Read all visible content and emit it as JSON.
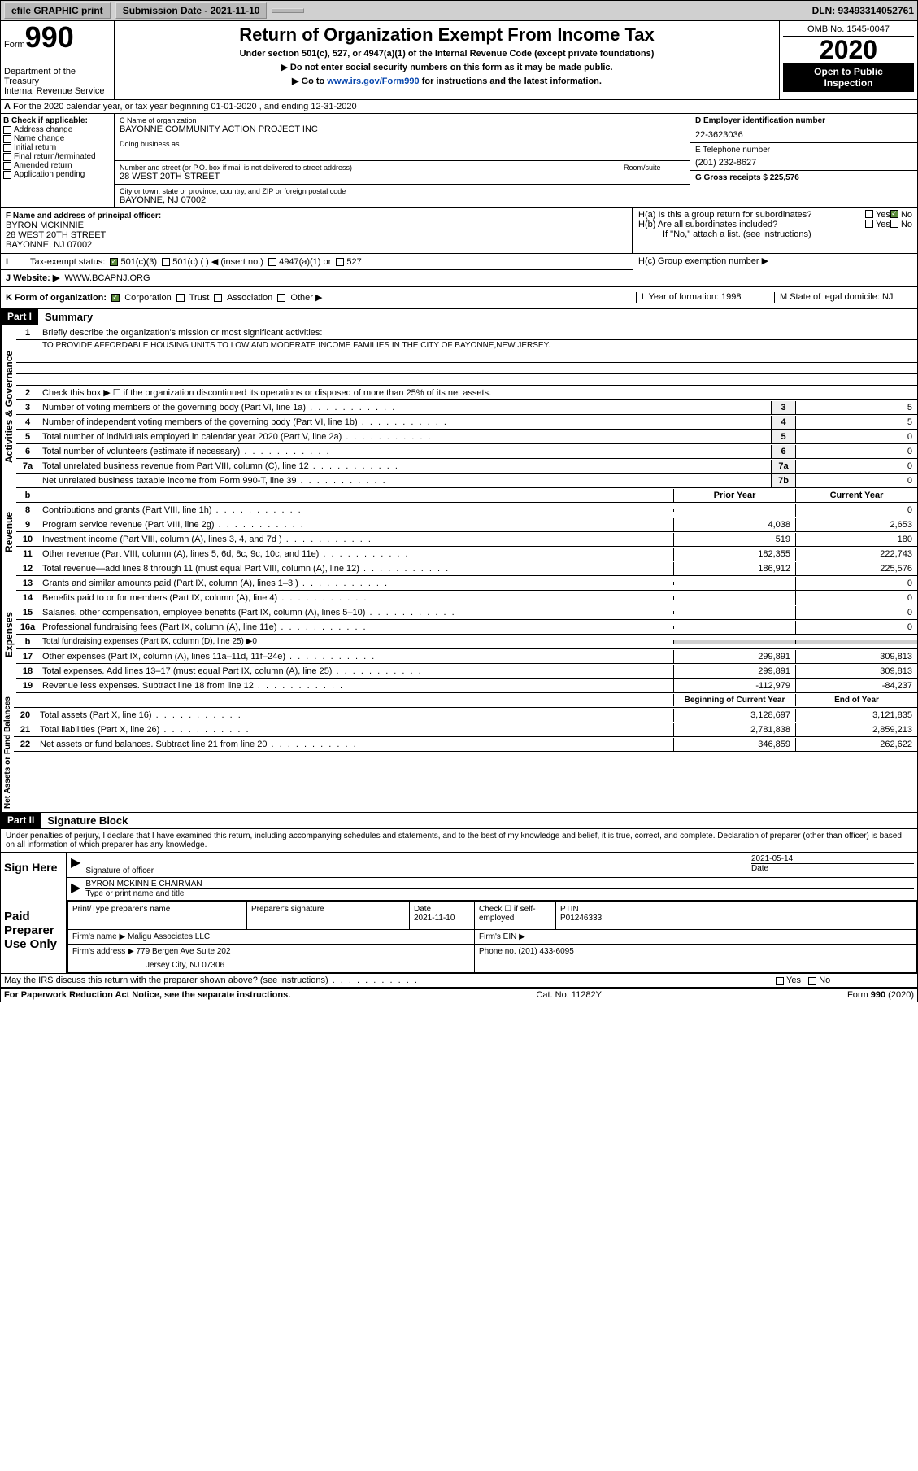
{
  "topbar": {
    "efile": "efile GRAPHIC print",
    "submission_label": "Submission Date - 2021-11-10",
    "dln": "DLN: 93493314052761"
  },
  "header": {
    "form_word": "Form",
    "form_num": "990",
    "dept": "Department of the Treasury",
    "irs": "Internal Revenue Service",
    "title": "Return of Organization Exempt From Income Tax",
    "subtitle": "Under section 501(c), 527, or 4947(a)(1) of the Internal Revenue Code (except private foundations)",
    "inst1": "▶ Do not enter social security numbers on this form as it may be made public.",
    "inst2_pre": "▶ Go to ",
    "inst2_link": "www.irs.gov/Form990",
    "inst2_post": " for instructions and the latest information.",
    "omb": "OMB No. 1545-0047",
    "year": "2020",
    "public1": "Open to Public",
    "public2": "Inspection"
  },
  "line_a": "For the 2020 calendar year, or tax year beginning 01-01-2020    , and ending 12-31-2020",
  "box_b": {
    "label": "B Check if applicable:",
    "items": [
      "Address change",
      "Name change",
      "Initial return",
      "Final return/terminated",
      "Amended return",
      "Application pending"
    ]
  },
  "box_c": {
    "name_label": "C Name of organization",
    "name": "BAYONNE COMMUNITY ACTION PROJECT INC",
    "dba_label": "Doing business as",
    "street_label": "Number and street (or P.O. box if mail is not delivered to street address)",
    "room_label": "Room/suite",
    "street": "28 WEST 20TH STREET",
    "city_label": "City or town, state or province, country, and ZIP or foreign postal code",
    "city": "BAYONNE, NJ  07002"
  },
  "box_d": {
    "label": "D Employer identification number",
    "val": "22-3623036"
  },
  "box_e": {
    "label": "E Telephone number",
    "val": "(201) 232-8627"
  },
  "box_g": {
    "label": "G Gross receipts $ 225,576"
  },
  "box_f": {
    "label": "F Name and address of principal officer:",
    "name": "BYRON MCKINNIE",
    "street": "28 WEST 20TH STREET",
    "city": "BAYONNE, NJ  07002"
  },
  "box_h": {
    "a": "H(a)  Is this a group return for subordinates?",
    "b": "H(b)  Are all subordinates included?",
    "b_note": "If \"No,\" attach a list. (see instructions)",
    "c": "H(c)  Group exemption number ▶"
  },
  "tax_status": {
    "label": "Tax-exempt status:",
    "opts": [
      "501(c)(3)",
      "501(c) (  ) ◀ (insert no.)",
      "4947(a)(1) or",
      "527"
    ]
  },
  "website": {
    "label": "J   Website: ▶",
    "val": "WWW.BCAPNJ.ORG"
  },
  "line_k": {
    "k": "K Form of organization:",
    "opts": [
      "Corporation",
      "Trust",
      "Association",
      "Other ▶"
    ],
    "l": "L Year of formation: 1998",
    "m": "M State of legal domicile: NJ"
  },
  "part1": {
    "header": "Part I",
    "title": "Summary",
    "q1": "Briefly describe the organization's mission or most significant activities:",
    "mission": "TO PROVIDE AFFORDABLE HOUSING UNITS TO LOW AND MODERATE INCOME FAMILIES IN THE CITY OF BAYONNE,NEW JERSEY.",
    "q2": "Check this box ▶ ☐  if the organization discontinued its operations or disposed of more than 25% of its net assets.",
    "vlabel_gov": "Activities & Governance",
    "vlabel_rev": "Revenue",
    "vlabel_exp": "Expenses",
    "vlabel_net": "Net Assets or Fund Balances",
    "col_prior": "Prior Year",
    "col_current": "Current Year",
    "col_beg": "Beginning of Current Year",
    "col_end": "End of Year",
    "rows_gov": [
      {
        "n": "3",
        "d": "Number of voting members of the governing body (Part VI, line 1a)",
        "box": "3",
        "v": "5"
      },
      {
        "n": "4",
        "d": "Number of independent voting members of the governing body (Part VI, line 1b)",
        "box": "4",
        "v": "5"
      },
      {
        "n": "5",
        "d": "Total number of individuals employed in calendar year 2020 (Part V, line 2a)",
        "box": "5",
        "v": "0"
      },
      {
        "n": "6",
        "d": "Total number of volunteers (estimate if necessary)",
        "box": "6",
        "v": "0"
      },
      {
        "n": "7a",
        "d": "Total unrelated business revenue from Part VIII, column (C), line 12",
        "box": "7a",
        "v": "0"
      },
      {
        "n": "",
        "d": "Net unrelated business taxable income from Form 990-T, line 39",
        "box": "7b",
        "v": "0"
      }
    ],
    "rows_rev": [
      {
        "n": "8",
        "d": "Contributions and grants (Part VIII, line 1h)",
        "p": "",
        "c": "0"
      },
      {
        "n": "9",
        "d": "Program service revenue (Part VIII, line 2g)",
        "p": "4,038",
        "c": "2,653"
      },
      {
        "n": "10",
        "d": "Investment income (Part VIII, column (A), lines 3, 4, and 7d )",
        "p": "519",
        "c": "180"
      },
      {
        "n": "11",
        "d": "Other revenue (Part VIII, column (A), lines 5, 6d, 8c, 9c, 10c, and 11e)",
        "p": "182,355",
        "c": "222,743"
      },
      {
        "n": "12",
        "d": "Total revenue—add lines 8 through 11 (must equal Part VIII, column (A), line 12)",
        "p": "186,912",
        "c": "225,576"
      }
    ],
    "rows_exp": [
      {
        "n": "13",
        "d": "Grants and similar amounts paid (Part IX, column (A), lines 1–3 )",
        "p": "",
        "c": "0"
      },
      {
        "n": "14",
        "d": "Benefits paid to or for members (Part IX, column (A), line 4)",
        "p": "",
        "c": "0"
      },
      {
        "n": "15",
        "d": "Salaries, other compensation, employee benefits (Part IX, column (A), lines 5–10)",
        "p": "",
        "c": "0"
      },
      {
        "n": "16a",
        "d": "Professional fundraising fees (Part IX, column (A), line 11e)",
        "p": "",
        "c": "0"
      },
      {
        "n": "b",
        "d": "Total fundraising expenses (Part IX, column (D), line 25) ▶0",
        "p": null,
        "c": null
      },
      {
        "n": "17",
        "d": "Other expenses (Part IX, column (A), lines 11a–11d, 11f–24e)",
        "p": "299,891",
        "c": "309,813"
      },
      {
        "n": "18",
        "d": "Total expenses. Add lines 13–17 (must equal Part IX, column (A), line 25)",
        "p": "299,891",
        "c": "309,813"
      },
      {
        "n": "19",
        "d": "Revenue less expenses. Subtract line 18 from line 12",
        "p": "-112,979",
        "c": "-84,237"
      }
    ],
    "rows_net": [
      {
        "n": "20",
        "d": "Total assets (Part X, line 16)",
        "p": "3,128,697",
        "c": "3,121,835"
      },
      {
        "n": "21",
        "d": "Total liabilities (Part X, line 26)",
        "p": "2,781,838",
        "c": "2,859,213"
      },
      {
        "n": "22",
        "d": "Net assets or fund balances. Subtract line 21 from line 20",
        "p": "346,859",
        "c": "262,622"
      }
    ]
  },
  "part2": {
    "header": "Part II",
    "title": "Signature Block",
    "penalty": "Under penalties of perjury, I declare that I have examined this return, including accompanying schedules and statements, and to the best of my knowledge and belief, it is true, correct, and complete. Declaration of preparer (other than officer) is based on all information of which preparer has any knowledge.",
    "sign_here": "Sign Here",
    "sig_officer": "Signature of officer",
    "sig_date": "2021-05-14",
    "sig_date_label": "Date",
    "officer_name": "BYRON MCKINNIE CHAIRMAN",
    "officer_label": "Type or print name and title",
    "paid": "Paid Preparer Use Only",
    "prep_name_label": "Print/Type preparer's name",
    "prep_sig_label": "Preparer's signature",
    "prep_date_label": "Date",
    "prep_date": "2021-11-10",
    "check_label": "Check ☐ if self-employed",
    "ptin_label": "PTIN",
    "ptin": "P01246333",
    "firm_name_label": "Firm's name     ▶",
    "firm_name": "Maligu Associates LLC",
    "firm_ein_label": "Firm's EIN ▶",
    "firm_addr_label": "Firm's address ▶",
    "firm_addr1": "779 Bergen Ave Suite 202",
    "firm_addr2": "Jersey City, NJ  07306",
    "phone_label": "Phone no. (201) 433-6095",
    "discuss": "May the IRS discuss this return with the preparer shown above? (see instructions)"
  },
  "footer": {
    "paperwork": "For Paperwork Reduction Act Notice, see the separate instructions.",
    "cat": "Cat. No. 11282Y",
    "form": "Form 990 (2020)"
  }
}
